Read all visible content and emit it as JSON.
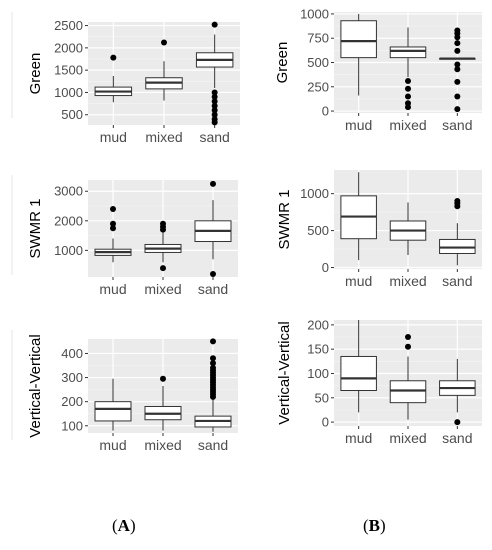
{
  "panel_labels": {
    "a": "A",
    "b": "B"
  },
  "colors": {
    "panel_bg": "#ebebeb",
    "grid_major": "#ffffff",
    "grid_minor": "#f5f5f5",
    "box_fill": "#ffffff",
    "box_line": "#333333",
    "outlier": "#000000",
    "text": "#4d4d4d",
    "label": "#000000"
  },
  "chart_data": [
    {
      "id": "A-green",
      "type": "box",
      "ylabel": "Green",
      "categories": [
        "mud",
        "mixed",
        "sand"
      ],
      "ylim": [
        270,
        2580
      ],
      "yticks": [
        500,
        1000,
        1500,
        2000,
        2500
      ],
      "boxes": [
        {
          "min": 780,
          "q1": 930,
          "median": 1020,
          "q3": 1120,
          "max": 1370,
          "outliers": [
            1780
          ]
        },
        {
          "min": 820,
          "q1": 1080,
          "median": 1220,
          "q3": 1330,
          "max": 1700,
          "outliers": [
            2120
          ]
        },
        {
          "min": 1100,
          "q1": 1570,
          "median": 1730,
          "q3": 1890,
          "max": 2300,
          "outliers": [
            2520,
            1000,
            900,
            800,
            700,
            600,
            500,
            400,
            330
          ]
        }
      ]
    },
    {
      "id": "B-green",
      "type": "box",
      "ylabel": "Green",
      "categories": [
        "mud",
        "mixed",
        "sand"
      ],
      "ylim": [
        -20,
        1020
      ],
      "yticks": [
        0,
        250,
        500,
        750,
        1000
      ],
      "boxes": [
        {
          "min": 160,
          "q1": 550,
          "median": 720,
          "q3": 930,
          "max": 1000,
          "outliers": []
        },
        {
          "min": 350,
          "q1": 550,
          "median": 620,
          "q3": 660,
          "max": 860,
          "outliers": [
            310,
            230,
            150,
            80,
            40
          ]
        },
        {
          "min": 540,
          "q1": 540,
          "median": 540,
          "q3": 540,
          "max": 540,
          "outliers": [
            830,
            800,
            760,
            700,
            620,
            480,
            430,
            300,
            150,
            20
          ]
        }
      ]
    },
    {
      "id": "A-swir",
      "type": "box",
      "ylabel": "SWMR 1",
      "categories": [
        "mud",
        "mixed",
        "sand"
      ],
      "ylim": [
        100,
        3380
      ],
      "yticks": [
        1000,
        2000,
        3000
      ],
      "boxes": [
        {
          "min": 600,
          "q1": 830,
          "median": 940,
          "q3": 1040,
          "max": 1400,
          "outliers": [
            2400,
            1900,
            1750
          ]
        },
        {
          "min": 600,
          "q1": 930,
          "median": 1060,
          "q3": 1200,
          "max": 1600,
          "outliers": [
            1900,
            1800,
            1700,
            400
          ]
        },
        {
          "min": 700,
          "q1": 1300,
          "median": 1660,
          "q3": 2000,
          "max": 2700,
          "outliers": [
            3250,
            200
          ]
        }
      ]
    },
    {
      "id": "B-swir",
      "type": "box",
      "ylabel": "SWMR 1",
      "categories": [
        "mud",
        "mixed",
        "sand"
      ],
      "ylim": [
        -20,
        1320
      ],
      "yticks": [
        0,
        500,
        1000
      ],
      "boxes": [
        {
          "min": 100,
          "q1": 390,
          "median": 690,
          "q3": 970,
          "max": 1290,
          "outliers": []
        },
        {
          "min": 170,
          "q1": 370,
          "median": 500,
          "q3": 630,
          "max": 880,
          "outliers": []
        },
        {
          "min": 30,
          "q1": 190,
          "median": 270,
          "q3": 380,
          "max": 600,
          "outliers": [
            900,
            870,
            830
          ]
        }
      ]
    },
    {
      "id": "A-vv",
      "type": "box",
      "ylabel": "Vertical-Vertical",
      "categories": [
        "mud",
        "mixed",
        "sand"
      ],
      "ylim": [
        70,
        460
      ],
      "yticks": [
        100,
        200,
        300,
        400
      ],
      "boxes": [
        {
          "min": 80,
          "q1": 120,
          "median": 170,
          "q3": 200,
          "max": 295,
          "outliers": []
        },
        {
          "min": 80,
          "q1": 125,
          "median": 150,
          "q3": 180,
          "max": 265,
          "outliers": [
            295
          ]
        },
        {
          "min": 75,
          "q1": 95,
          "median": 120,
          "q3": 140,
          "max": 210,
          "outliers": [
            450,
            380,
            360,
            340,
            330,
            320,
            310,
            300,
            290,
            280,
            270,
            260,
            250,
            240,
            230,
            220
          ]
        }
      ]
    },
    {
      "id": "B-vv",
      "type": "box",
      "ylabel": "Vertical-Vertical",
      "categories": [
        "mud",
        "mixed",
        "sand"
      ],
      "ylim": [
        -8,
        210
      ],
      "yticks": [
        0,
        50,
        100,
        150,
        200
      ],
      "boxes": [
        {
          "min": 20,
          "q1": 65,
          "median": 90,
          "q3": 135,
          "max": 210,
          "outliers": []
        },
        {
          "min": 5,
          "q1": 40,
          "median": 65,
          "q3": 85,
          "max": 135,
          "outliers": [
            175,
            155
          ]
        },
        {
          "min": 20,
          "q1": 55,
          "median": 70,
          "q3": 85,
          "max": 130,
          "outliers": [
            0
          ]
        }
      ]
    }
  ]
}
